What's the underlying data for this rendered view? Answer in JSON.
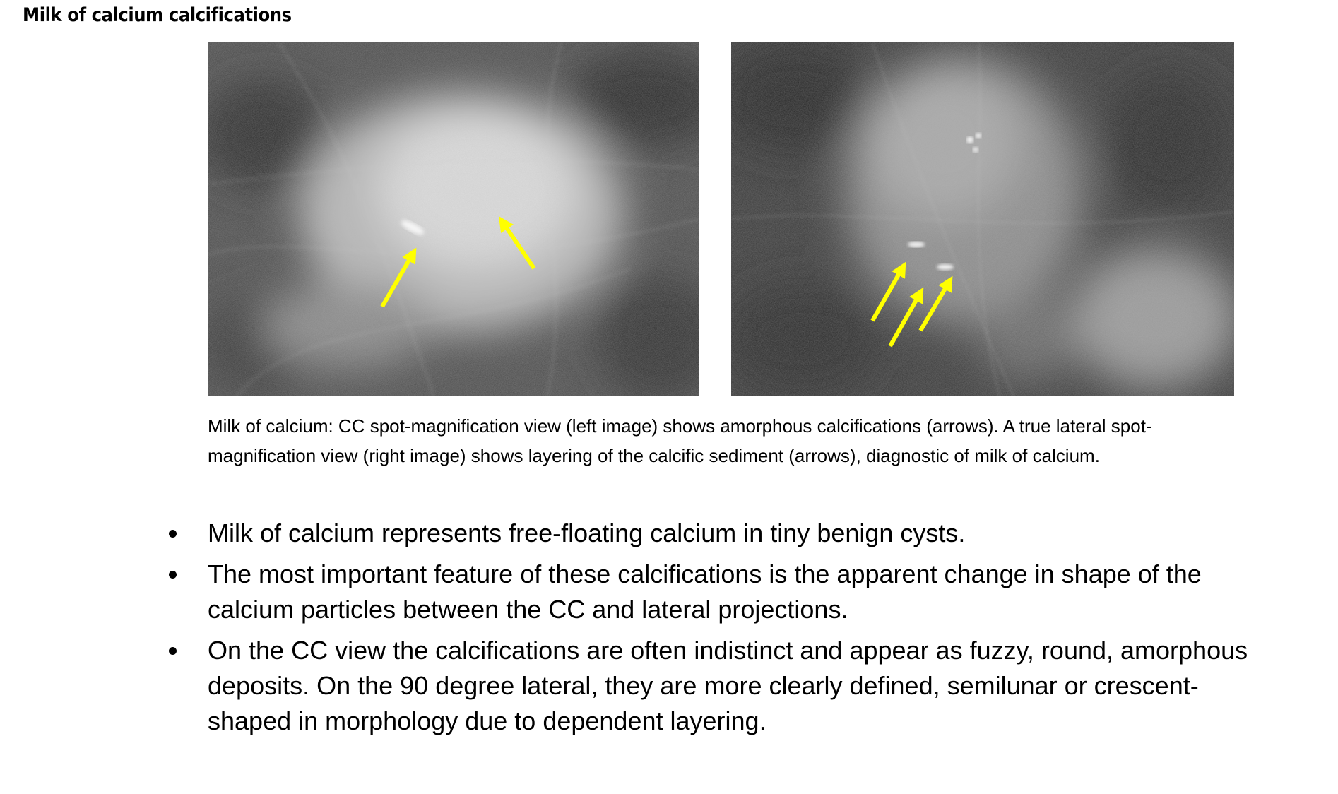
{
  "title": "Milk of calcium calcifications",
  "figures": {
    "left": {
      "alt": "CC spot-magnification view",
      "arrow_color": "#ffff00",
      "arrow_count": 2
    },
    "right": {
      "alt": "True lateral spot-magnification view",
      "arrow_color": "#ffff00",
      "arrow_count": 3
    }
  },
  "caption": "Milk of calcium: CC spot-magnification view (left image) shows amorphous calcifications (arrows). A true lateral spot-magnification view (right image) shows layering of the calcific sediment (arrows), diagnostic of milk of calcium.",
  "bullets": [
    "Milk of calcium represents free-floating calcium in tiny benign cysts.",
    "The most important feature of these calcifications is the apparent change in shape of the calcium particles between the CC and lateral projections.",
    "On the CC view the calcifications are often indistinct and appear as fuzzy, round, amorphous deposits. On the 90 degree lateral, they are more clearly defined, semilunar or crescent-shaped in morphology due to dependent layering."
  ]
}
